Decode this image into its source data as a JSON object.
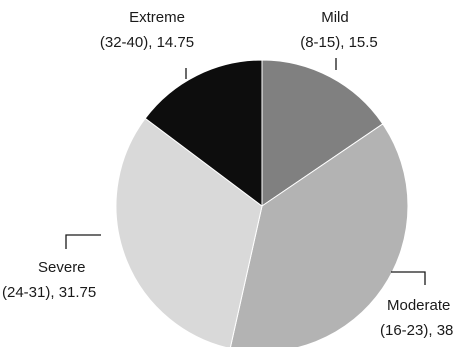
{
  "chart_data": {
    "type": "pie",
    "title": "",
    "start_angle_deg": 0,
    "direction": "clockwise",
    "slices": [
      {
        "name": "Mild",
        "range": "(8-15), 15.5",
        "value": 15.5,
        "color": "#808080"
      },
      {
        "name": "Moderate",
        "range": "(16-23), 38",
        "value": 38,
        "color": "#b3b3b3"
      },
      {
        "name": "Severe",
        "range": "(24-31), 31.75",
        "value": 31.75,
        "color": "#d9d9d9"
      },
      {
        "name": "Extreme",
        "range": "(32-40), 14.75",
        "value": 14.75,
        "color": "#0d0d0d"
      }
    ]
  }
}
